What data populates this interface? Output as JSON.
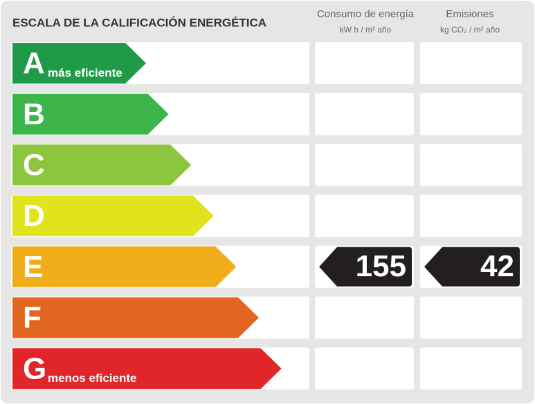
{
  "header": {
    "title": "ESCALA DE LA CALIFICACIÓN ENERGÉTICA"
  },
  "columns": [
    {
      "title": "Consumo de energía",
      "unit": "kW h / m² año"
    },
    {
      "title": "Emisiones",
      "unit": "kg CO₂ / m² año"
    }
  ],
  "rows": [
    {
      "letter": "A",
      "label": "más eficiente",
      "color": "#1e9a48"
    },
    {
      "letter": "B",
      "color": "#3db54a"
    },
    {
      "letter": "C",
      "color": "#8cc63f"
    },
    {
      "letter": "D",
      "color": "#e1e31c"
    },
    {
      "letter": "E",
      "color": "#efad1a",
      "values": [
        155,
        42
      ]
    },
    {
      "letter": "F",
      "color": "#e1661f"
    },
    {
      "letter": "G",
      "label": "menos eficiente",
      "color": "#e1262a"
    }
  ]
}
